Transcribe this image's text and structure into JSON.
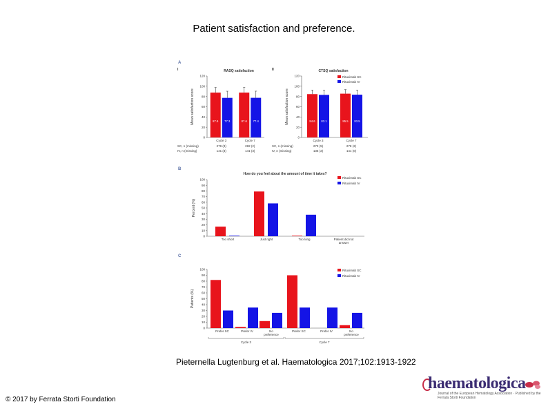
{
  "slide": {
    "title": "Patient satisfaction and preference.",
    "citation": "Pieternella Lugtenburg et al. Haematologica 2017;102:1913-1922",
    "copyright": "© 2017 by Ferrata Storti Foundation",
    "logo_text": "haematologica",
    "logo_tagline": "Journal of the European Hematology Association · Published by the Ferrata Storti Foundation"
  },
  "colors": {
    "sc": "#e8141c",
    "iv": "#1414e6",
    "axis": "#555555",
    "text": "#333333"
  },
  "chart_data": [
    {
      "id": "A-I",
      "panel": "A",
      "subpanel": "I",
      "type": "bar",
      "title": "RASQ satisfaction",
      "ylabel": "Mean satisfaction score",
      "ylim": [
        0,
        120
      ],
      "yticks": [
        0,
        20,
        40,
        60,
        80,
        100,
        120
      ],
      "categories": [
        "Cycle 3",
        "Cycle 7"
      ],
      "series": [
        {
          "name": "Rituximab SC",
          "values": [
            87.6,
            87.6
          ],
          "errors": [
            10,
            10
          ]
        },
        {
          "name": "Rituximab IV",
          "values": [
            77.3,
            77.4
          ],
          "errors": [
            13,
            13
          ]
        }
      ],
      "value_labels": [
        "87.6",
        "77.3",
        "87.6",
        "77.4"
      ],
      "counts": {
        "sc_label": "SC, n (missing)",
        "iv_label": "IV, n (missing)",
        "sc": [
          "279 (3)",
          "282 (2)"
        ],
        "iv": [
          "141 (3)",
          "141 (3)"
        ]
      }
    },
    {
      "id": "A-II",
      "panel": "A",
      "subpanel": "II",
      "type": "bar",
      "title": "CTSQ satisfaction",
      "ylabel": "Mean satisfaction score",
      "ylim": [
        0,
        120
      ],
      "yticks": [
        0,
        20,
        40,
        60,
        80,
        100,
        120
      ],
      "categories": [
        "Cycle 3",
        "Cycle 7"
      ],
      "series": [
        {
          "name": "Rituximab SC",
          "values": [
            84.6,
            85.5
          ],
          "errors": [
            8,
            8
          ]
        },
        {
          "name": "Rituximab IV",
          "values": [
            83.1,
            83.5
          ],
          "errors": [
            9,
            9
          ]
        }
      ],
      "value_labels": [
        "84.6",
        "83.1",
        "85.5",
        "83.5"
      ],
      "counts": {
        "sc_label": "SC, n (missing)",
        "iv_label": "IV, n (missing)",
        "sc": [
          "273 (5)",
          "278 (2)"
        ],
        "iv": [
          "135 (2)",
          "141 (0)"
        ]
      },
      "legend": [
        "Rituximab SC",
        "Rituximab IV"
      ]
    },
    {
      "id": "B",
      "panel": "B",
      "type": "bar",
      "title": "How do you feel about the amount of time it takes?",
      "ylabel": "Percent (%)",
      "ylim": [
        0,
        100
      ],
      "yticks": [
        0,
        10,
        20,
        30,
        40,
        50,
        60,
        70,
        80,
        90,
        100
      ],
      "categories": [
        "Too short",
        "Just right",
        "Too long",
        "Patient did not answer"
      ],
      "series": [
        {
          "name": "Rituximab SC",
          "values": [
            17,
            79,
            1,
            0
          ]
        },
        {
          "name": "Rituximab IV",
          "values": [
            1,
            58,
            38,
            0
          ]
        }
      ],
      "legend": [
        "Rituximab SC",
        "Rituximab IV"
      ]
    },
    {
      "id": "C",
      "panel": "C",
      "type": "bar",
      "ylabel": "Patients (%)",
      "ylim": [
        0,
        100
      ],
      "yticks": [
        0,
        10,
        20,
        30,
        40,
        50,
        60,
        70,
        80,
        90,
        100
      ],
      "categories": [
        "Prefer SC",
        "Prefer IV",
        "No preference",
        "Prefer SC",
        "Prefer IV",
        "No preference"
      ],
      "groups": [
        {
          "label": "Cycle 3",
          "span": [
            0,
            2
          ]
        },
        {
          "label": "Cycle 7",
          "span": [
            3,
            5
          ]
        }
      ],
      "series": [
        {
          "name": "Rituximab SC",
          "values": [
            82,
            2,
            12,
            90,
            0,
            5
          ]
        },
        {
          "name": "Rituximab IV",
          "values": [
            30,
            35,
            26,
            35,
            35,
            26
          ]
        }
      ],
      "legend": [
        "Rituximab SC",
        "Rituximab IV"
      ]
    }
  ]
}
